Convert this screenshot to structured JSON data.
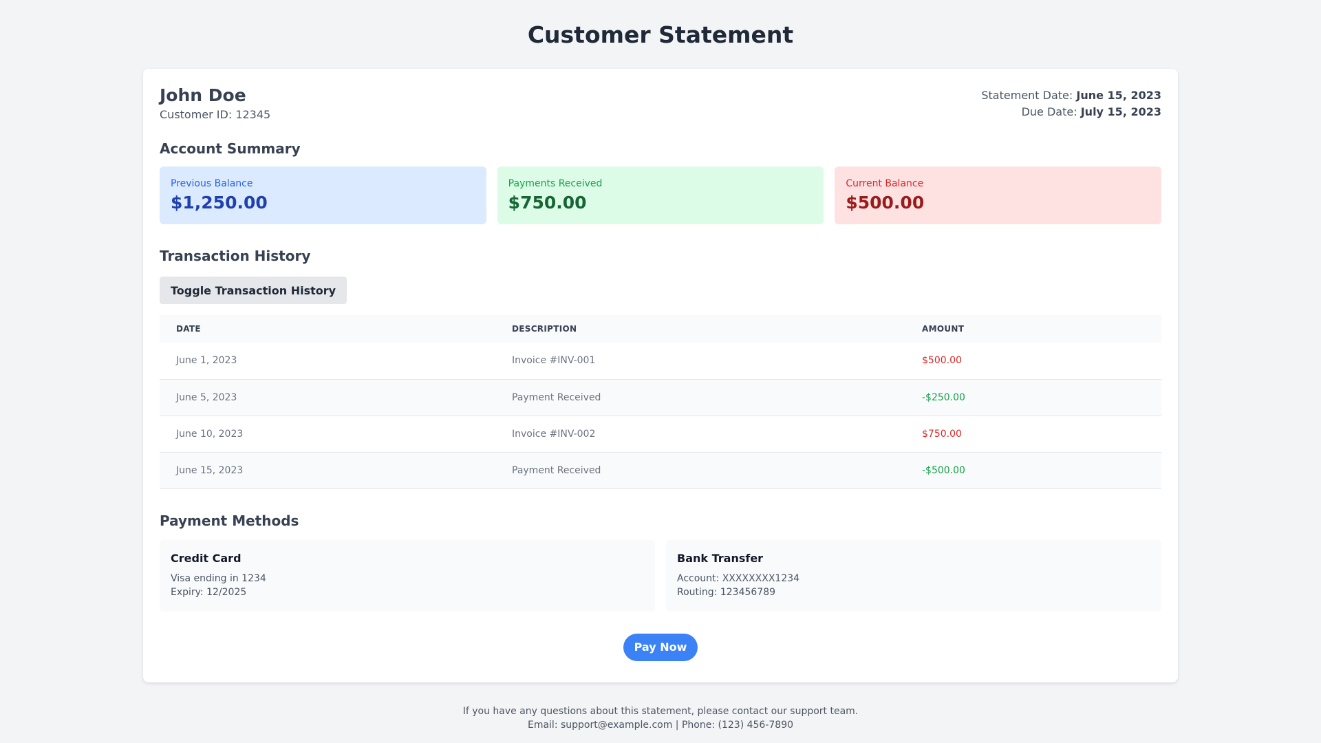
{
  "page": {
    "title": "Customer Statement"
  },
  "customer": {
    "name": "John Doe",
    "id_label": "Customer ID: 12345"
  },
  "dates": {
    "statement_label": "Statement Date:",
    "statement_value": "June 15, 2023",
    "due_label": "Due Date:",
    "due_value": "July 15, 2023"
  },
  "summary": {
    "title": "Account Summary",
    "items": [
      {
        "label": "Previous Balance",
        "value": "$1,250.00",
        "color": "#dbeafe"
      },
      {
        "label": "Payments Received",
        "value": "$750.00",
        "color": "#dcfce7"
      },
      {
        "label": "Current Balance",
        "value": "$500.00",
        "color": "#fee2e2"
      }
    ]
  },
  "history": {
    "title": "Transaction History",
    "toggle_label": "Toggle Transaction History",
    "columns": [
      "DATE",
      "DESCRIPTION",
      "AMOUNT"
    ],
    "rows": [
      {
        "date": "June 1, 2023",
        "description": "Invoice #INV-001",
        "amount": "$500.00",
        "type": "charge"
      },
      {
        "date": "June 5, 2023",
        "description": "Payment Received",
        "amount": "-$250.00",
        "type": "credit"
      },
      {
        "date": "June 10, 2023",
        "description": "Invoice #INV-002",
        "amount": "$750.00",
        "type": "charge"
      },
      {
        "date": "June 15, 2023",
        "description": "Payment Received",
        "amount": "-$500.00",
        "type": "credit"
      }
    ]
  },
  "payment_methods": {
    "title": "Payment Methods",
    "methods": [
      {
        "name": "Credit Card",
        "line1": "Visa ending in 1234",
        "line2": "Expiry: 12/2025"
      },
      {
        "name": "Bank Transfer",
        "line1": "Account: XXXXXXXX1234",
        "line2": "Routing: 123456789"
      }
    ],
    "pay_button": "Pay Now"
  },
  "footer": {
    "line1": "If you have any questions about this statement, please contact our support team.",
    "line2": "Email: support@example.com | Phone: (123) 456-7890"
  },
  "colors": {
    "background": "#f3f4f6",
    "accent": "#3b82f6",
    "charge": "#dc2626",
    "credit": "#16a34a"
  }
}
